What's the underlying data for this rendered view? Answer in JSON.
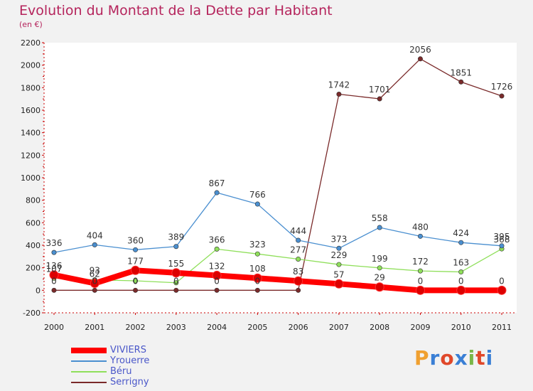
{
  "header": {
    "title": "Evolution du Montant de la Dette par Habitant",
    "subtitle": "(en €)"
  },
  "brand": {
    "letters": [
      "P",
      "r",
      "o",
      "x",
      "i",
      "t",
      "i"
    ],
    "colors": [
      "#f0a030",
      "#3a7fd5",
      "#e0482a",
      "#3a7fd5",
      "#7ab648",
      "#e0482a",
      "#3a7fd5"
    ]
  },
  "chart_data": {
    "type": "line",
    "categories": [
      "2000",
      "2001",
      "2002",
      "2003",
      "2004",
      "2005",
      "2006",
      "2007",
      "2008",
      "2009",
      "2010",
      "2011"
    ],
    "ylim": [
      -200,
      2200
    ],
    "yticks": [
      -200,
      0,
      200,
      400,
      600,
      800,
      1000,
      1200,
      1400,
      1600,
      1800,
      2000,
      2200
    ],
    "grid": false,
    "legend_position": "bottom-left",
    "series": [
      {
        "name": "VIVIERS",
        "color": "#ff0000",
        "values": [
          136,
          62,
          177,
          155,
          132,
          108,
          83,
          57,
          29,
          0,
          0,
          0
        ],
        "labels": [
          "136",
          "62",
          "177",
          "155",
          "132",
          "108",
          "83",
          "57",
          "29",
          "0",
          "0",
          "0"
        ]
      },
      {
        "name": "Yrouerre",
        "color": "#4a8fd0",
        "values": [
          336,
          404,
          360,
          389,
          867,
          766,
          444,
          373,
          558,
          480,
          424,
          395
        ],
        "labels": [
          "336",
          "404",
          "360",
          "389",
          "867",
          "766",
          "444",
          "373",
          "558",
          "480",
          "424",
          "395"
        ]
      },
      {
        "name": "Béru",
        "color": "#8fdf5a",
        "values": [
          107,
          93,
          84,
          67,
          366,
          323,
          277,
          229,
          199,
          172,
          163,
          368
        ],
        "labels": [
          "107",
          "93",
          "",
          "",
          "366",
          "323",
          "277",
          "229",
          "199",
          "172",
          "163",
          "368"
        ]
      },
      {
        "name": "Serrigny",
        "color": "#7a2a2a",
        "values": [
          0,
          0,
          0,
          0,
          0,
          0,
          0,
          1742,
          1701,
          2056,
          1851,
          1726
        ],
        "labels": [
          "0",
          "0",
          "0",
          "0",
          "0",
          "0",
          "",
          "1742",
          "1701",
          "2056",
          "1851",
          "1726"
        ]
      }
    ]
  }
}
